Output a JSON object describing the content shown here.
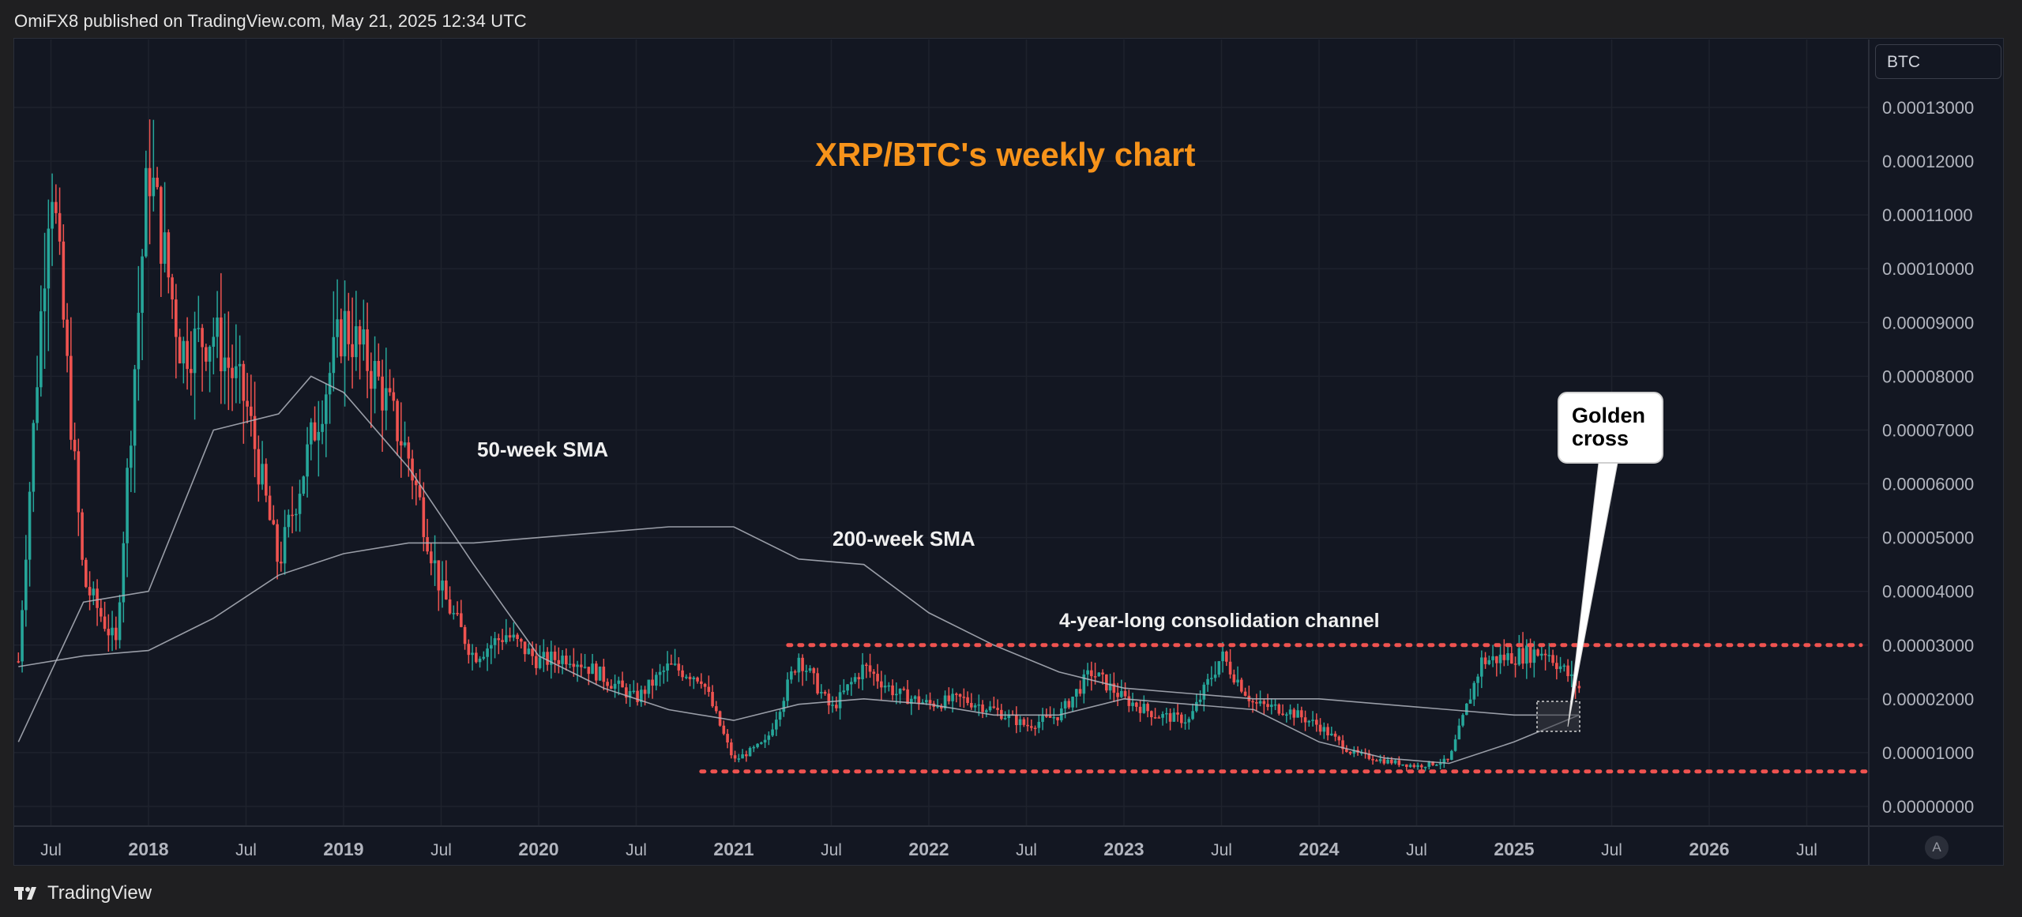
{
  "header": {
    "publish_note": "OmiFX8 published on TradingView.com, May 21, 2025 12:34 UTC"
  },
  "footer": {
    "brand": "TradingView",
    "logo_icon": "tradingview-logo-icon"
  },
  "chart_toolbar": {
    "currency": "BTC",
    "auto_scale_label": "A"
  },
  "colors": {
    "background": "#131722",
    "up_candle": "#26a69a",
    "down_candle": "#ef5350",
    "sma_line": "#b2b5be",
    "channel": "#ef5350",
    "title": "#f7931a"
  },
  "annotations": {
    "sma50": "50-week SMA",
    "sma200": "200-week SMA",
    "channel": "4-year-long consolidation channel",
    "golden_cross_line1": "Golden",
    "golden_cross_line2": "cross"
  },
  "chart_data": {
    "type": "candlestick",
    "title": "XRP/BTC's weekly chart",
    "xlabel": "",
    "ylabel": "",
    "x_ticks": [
      "Jul",
      "2018",
      "Jul",
      "2019",
      "Jul",
      "2020",
      "Jul",
      "2021",
      "Jul",
      "2022",
      "Jul",
      "2023",
      "Jul",
      "2024",
      "Jul",
      "2025",
      "Jul",
      "2026",
      "Jul"
    ],
    "y_ticks": [
      "0.00013000",
      "0.00012000",
      "0.00011000",
      "0.00010000",
      "0.00009000",
      "0.00008000",
      "0.00007000",
      "0.00006000",
      "0.00005000",
      "0.00004000",
      "0.00003000",
      "0.00002000",
      "0.00001000",
      "0.00000000"
    ],
    "ylim": [
      0,
      0.000145
    ],
    "grid": true,
    "series": [
      {
        "name": "XRP/BTC",
        "x": [
          "2017-05",
          "2017-07",
          "2017-09",
          "2017-11",
          "2018-01",
          "2018-03",
          "2018-05",
          "2018-07",
          "2018-09",
          "2018-11",
          "2019-01",
          "2019-03",
          "2019-05",
          "2019-07",
          "2019-09",
          "2019-11",
          "2020-01",
          "2020-03",
          "2020-05",
          "2020-07",
          "2020-09",
          "2020-11",
          "2021-01",
          "2021-03",
          "2021-05",
          "2021-07",
          "2021-09",
          "2021-11",
          "2022-01",
          "2022-03",
          "2022-05",
          "2022-07",
          "2022-09",
          "2022-11",
          "2023-01",
          "2023-03",
          "2023-05",
          "2023-07",
          "2023-09",
          "2023-11",
          "2024-01",
          "2024-03",
          "2024-05",
          "2024-07",
          "2024-09",
          "2024-11",
          "2025-01",
          "2025-03",
          "2025-05"
        ],
        "values": [
          2.7e-05,
          0.00012,
          4.2e-05,
          3e-05,
          0.00012,
          8.5e-05,
          8.8e-05,
          7.5e-05,
          4.5e-05,
          6.8e-05,
          9e-05,
          8e-05,
          6.5e-05,
          4e-05,
          2.8e-05,
          3.2e-05,
          2.7e-05,
          2.8e-05,
          2.4e-05,
          2e-05,
          2.6e-05,
          2.4e-05,
          8.5e-06,
          1.2e-05,
          2.8e-05,
          1.8e-05,
          2.6e-05,
          2.1e-05,
          1.9e-05,
          2e-05,
          1.8e-05,
          1.5e-05,
          1.7e-05,
          2.5e-05,
          2e-05,
          1.7e-05,
          1.6e-05,
          2.8e-05,
          1.9e-05,
          1.8e-05,
          1.5e-05,
          1e-05,
          8.5e-06,
          7.5e-06,
          8.5e-06,
          2.7e-05,
          2.8e-05,
          2.9e-05,
          2.2e-05
        ]
      },
      {
        "name": "50-week SMA",
        "x": [
          "2017-05",
          "2017-09",
          "2018-01",
          "2018-05",
          "2018-09",
          "2018-11",
          "2019-01",
          "2019-05",
          "2019-09",
          "2020-01",
          "2020-05",
          "2020-09",
          "2021-01",
          "2021-05",
          "2021-09",
          "2022-01",
          "2022-05",
          "2022-09",
          "2023-01",
          "2023-05",
          "2023-09",
          "2024-01",
          "2024-05",
          "2024-09",
          "2025-01",
          "2025-05"
        ],
        "values": [
          1.2e-05,
          3.8e-05,
          4e-05,
          7e-05,
          7.3e-05,
          8e-05,
          7.7e-05,
          6.3e-05,
          4.5e-05,
          2.8e-05,
          2.2e-05,
          1.8e-05,
          1.6e-05,
          1.9e-05,
          2e-05,
          1.9e-05,
          1.7e-05,
          1.7e-05,
          2e-05,
          1.9e-05,
          1.8e-05,
          1.2e-05,
          9e-06,
          8e-06,
          1.2e-05,
          1.7e-05
        ]
      },
      {
        "name": "200-week SMA",
        "x": [
          "2017-05",
          "2017-09",
          "2018-01",
          "2018-05",
          "2018-09",
          "2019-01",
          "2019-05",
          "2019-09",
          "2020-01",
          "2020-05",
          "2020-09",
          "2021-01",
          "2021-05",
          "2021-09",
          "2022-01",
          "2022-05",
          "2022-09",
          "2023-01",
          "2023-05",
          "2023-09",
          "2024-01",
          "2024-05",
          "2024-09",
          "2025-01",
          "2025-05"
        ],
        "values": [
          2.6e-05,
          2.8e-05,
          2.9e-05,
          3.5e-05,
          4.3e-05,
          4.7e-05,
          4.9e-05,
          4.9e-05,
          5e-05,
          5.1e-05,
          5.2e-05,
          5.2e-05,
          4.6e-05,
          4.5e-05,
          3.6e-05,
          3e-05,
          2.5e-05,
          2.2e-05,
          2.1e-05,
          2e-05,
          2e-05,
          1.9e-05,
          1.8e-05,
          1.7e-05,
          1.7e-05
        ]
      }
    ],
    "channel": {
      "upper": 3e-05,
      "lower": 6.5e-06,
      "start": "2020-11"
    }
  }
}
